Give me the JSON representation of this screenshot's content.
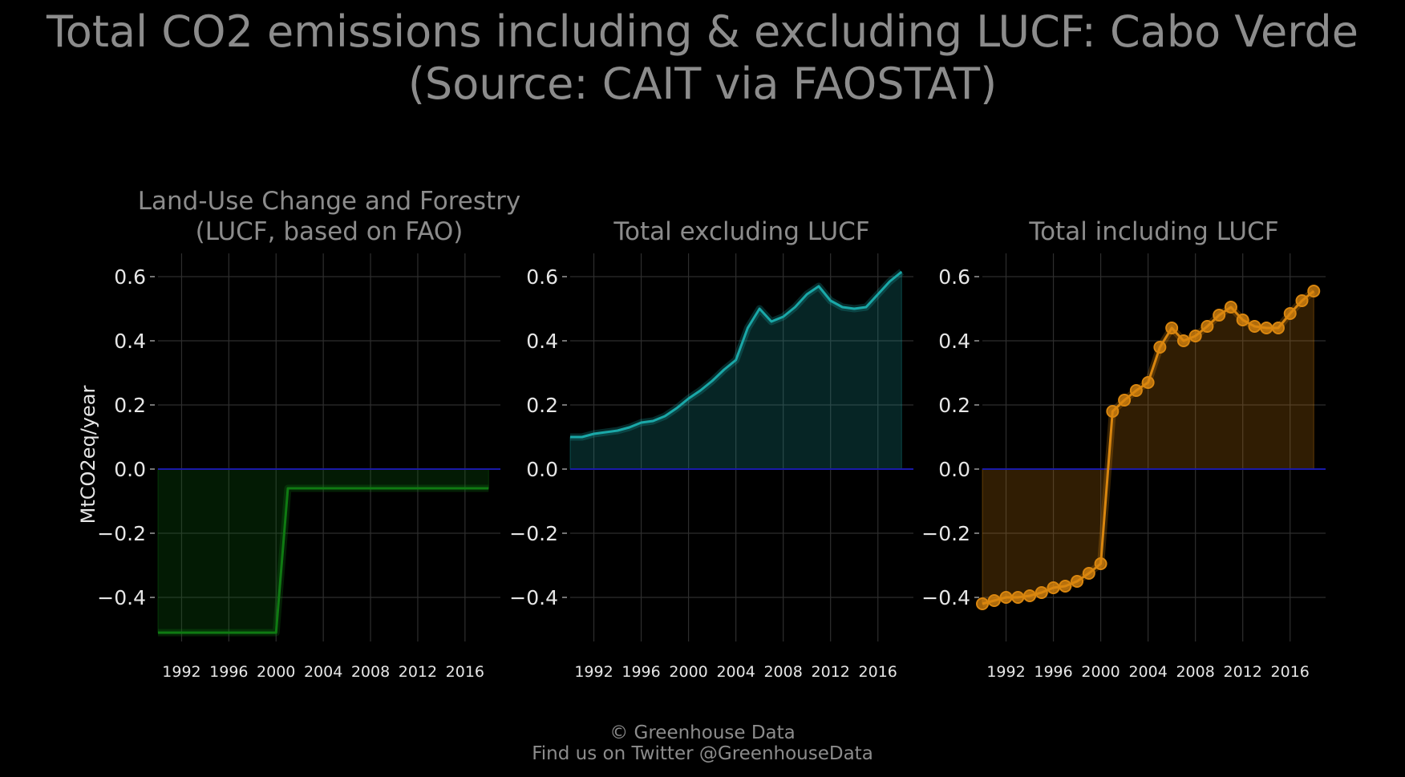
{
  "title": {
    "line1": "Total CO2 emissions including & excluding LUCF: Cabo Verde",
    "line2": "(Source: CAIT via FAOSTAT)"
  },
  "footer": {
    "line1": "© Greenhouse Data",
    "line2": "Find us on Twitter @GreenhouseData"
  },
  "colors": {
    "background": "#000000",
    "grid": "#2e2e2e",
    "zero_line": "#1a1aa8",
    "lucf": "#0f7a12",
    "excl": "#1aa8a8",
    "incl": "#d9860f",
    "title_text": "#8c8c8c",
    "tick_text": "#e6e6e6"
  },
  "chart_data": [
    {
      "type": "area",
      "title_lines": [
        "Land-Use Change and Forestry",
        "(LUCF, based on FAO)"
      ],
      "ylabel": "MtCO2eq/year",
      "color_key": "lucf",
      "markers": false,
      "grid": true,
      "xlim": [
        1990,
        2019
      ],
      "ylim": [
        -0.58,
        0.67
      ],
      "x_ticks": [
        1992,
        1996,
        2000,
        2004,
        2008,
        2012,
        2016
      ],
      "x_tick_labels": [
        "1992",
        "1996",
        "2000",
        "2004",
        "2008",
        "2012",
        "2016"
      ],
      "y_ticks": [
        0.6,
        0.4,
        0.2,
        0.0,
        -0.2,
        -0.4
      ],
      "y_tick_labels": [
        "0.6",
        "0.4",
        "0.2",
        "0.0",
        "−0.2",
        "−0.4"
      ],
      "series": [
        {
          "x": [
            1990,
            1991,
            1992,
            1993,
            1994,
            1995,
            1996,
            1997,
            1998,
            1999,
            2000,
            2001,
            2002,
            2003,
            2004,
            2005,
            2006,
            2007,
            2008,
            2009,
            2010,
            2011,
            2012,
            2013,
            2014,
            2015,
            2016,
            2017,
            2018
          ],
          "y": [
            -0.51,
            -0.51,
            -0.51,
            -0.51,
            -0.51,
            -0.51,
            -0.51,
            -0.51,
            -0.51,
            -0.51,
            -0.51,
            -0.06,
            -0.06,
            -0.06,
            -0.06,
            -0.06,
            -0.06,
            -0.06,
            -0.06,
            -0.06,
            -0.06,
            -0.06,
            -0.06,
            -0.06,
            -0.06,
            -0.06,
            -0.06,
            -0.06,
            -0.06
          ]
        }
      ]
    },
    {
      "type": "area",
      "title_lines": [
        "Total excluding LUCF"
      ],
      "ylabel": "",
      "color_key": "excl",
      "markers": false,
      "grid": true,
      "xlim": [
        1990,
        2019
      ],
      "ylim": [
        -0.58,
        0.67
      ],
      "x_ticks": [
        1992,
        1996,
        2000,
        2004,
        2008,
        2012,
        2016
      ],
      "x_tick_labels": [
        "1992",
        "1996",
        "2000",
        "2004",
        "2008",
        "2012",
        "2016"
      ],
      "y_ticks": [
        0.6,
        0.4,
        0.2,
        0.0,
        -0.2,
        -0.4
      ],
      "y_tick_labels": [
        "0.6",
        "0.4",
        "0.2",
        "0.0",
        "−0.2",
        "−0.4"
      ],
      "series": [
        {
          "x": [
            1990,
            1991,
            1992,
            1993,
            1994,
            1995,
            1996,
            1997,
            1998,
            1999,
            2000,
            2001,
            2002,
            2003,
            2004,
            2005,
            2006,
            2007,
            2008,
            2009,
            2010,
            2011,
            2012,
            2013,
            2014,
            2015,
            2016,
            2017,
            2018
          ],
          "y": [
            0.1,
            0.1,
            0.11,
            0.115,
            0.12,
            0.13,
            0.145,
            0.15,
            0.165,
            0.19,
            0.22,
            0.245,
            0.275,
            0.31,
            0.34,
            0.44,
            0.5,
            0.46,
            0.475,
            0.505,
            0.545,
            0.57,
            0.525,
            0.505,
            0.5,
            0.505,
            0.545,
            0.585,
            0.615
          ]
        }
      ]
    },
    {
      "type": "area",
      "title_lines": [
        "Total including LUCF"
      ],
      "ylabel": "",
      "color_key": "incl",
      "markers": true,
      "grid": true,
      "xlim": [
        1990,
        2019
      ],
      "ylim": [
        -0.58,
        0.67
      ],
      "x_ticks": [
        1992,
        1996,
        2000,
        2004,
        2008,
        2012,
        2016
      ],
      "x_tick_labels": [
        "1992",
        "1996",
        "2000",
        "2004",
        "2008",
        "2012",
        "2016"
      ],
      "y_ticks": [
        0.6,
        0.4,
        0.2,
        0.0,
        -0.2,
        -0.4
      ],
      "y_tick_labels": [
        "0.6",
        "0.4",
        "0.2",
        "0.0",
        "−0.2",
        "−0.4"
      ],
      "series": [
        {
          "x": [
            1990,
            1991,
            1992,
            1993,
            1994,
            1995,
            1996,
            1997,
            1998,
            1999,
            2000,
            2001,
            2002,
            2003,
            2004,
            2005,
            2006,
            2007,
            2008,
            2009,
            2010,
            2011,
            2012,
            2013,
            2014,
            2015,
            2016,
            2017,
            2018
          ],
          "y": [
            -0.42,
            -0.41,
            -0.4,
            -0.4,
            -0.395,
            -0.385,
            -0.37,
            -0.365,
            -0.35,
            -0.325,
            -0.295,
            0.18,
            0.215,
            0.245,
            0.27,
            0.38,
            0.44,
            0.4,
            0.415,
            0.445,
            0.48,
            0.505,
            0.465,
            0.445,
            0.44,
            0.44,
            0.485,
            0.525,
            0.555
          ]
        }
      ]
    }
  ]
}
